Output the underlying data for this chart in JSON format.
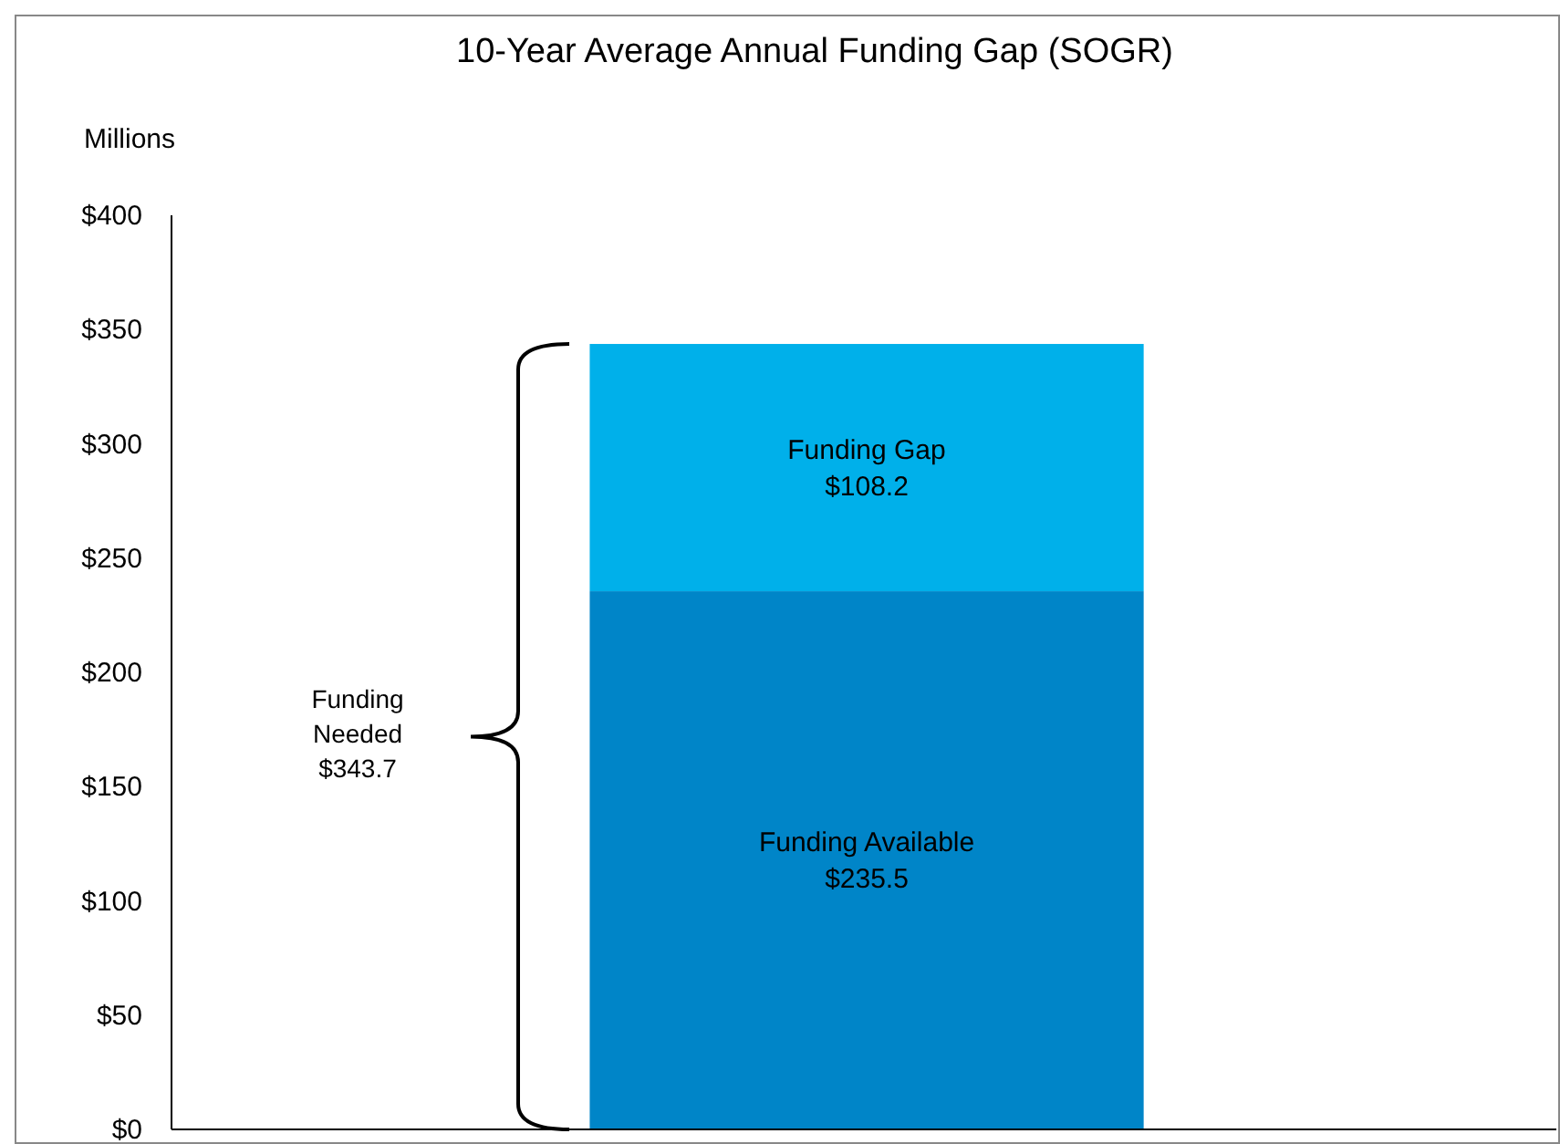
{
  "chart_data": {
    "type": "bar",
    "stacked": true,
    "title": "10-Year Average Annual Funding Gap (SOGR)",
    "ylabel": "Millions",
    "categories": [
      null
    ],
    "series": [
      {
        "name": "Funding Available",
        "color": "#0085c8",
        "values": [
          235.5
        ],
        "value_labels": [
          "$235.5"
        ]
      },
      {
        "name": "Funding Gap",
        "color": "#00b0ea",
        "values": [
          108.2
        ],
        "value_labels": [
          "$108.2"
        ]
      }
    ],
    "ylim": [
      0,
      400
    ],
    "yticks": [
      {
        "value": 0,
        "label": "$0"
      },
      {
        "value": 50,
        "label": "$50"
      },
      {
        "value": 100,
        "label": "$100"
      },
      {
        "value": 150,
        "label": "$150"
      },
      {
        "value": 200,
        "label": "$200"
      },
      {
        "value": 250,
        "label": "$250"
      },
      {
        "value": 300,
        "label": "$300"
      },
      {
        "value": 350,
        "label": "$350"
      },
      {
        "value": 400,
        "label": "$400"
      }
    ],
    "annotations": [
      "Funding\nNeeded\n$343.7"
    ],
    "grid": false,
    "legend": false
  }
}
